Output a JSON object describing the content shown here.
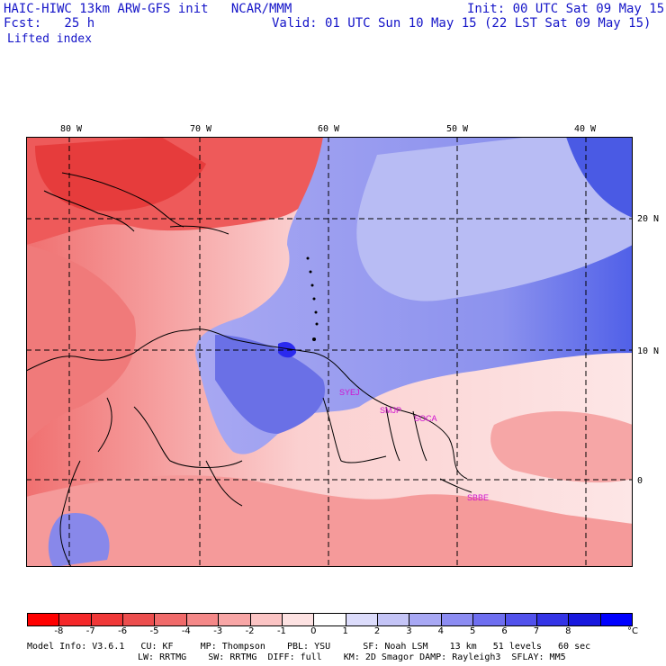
{
  "header": {
    "title": "HAIC-HIWC 13km ARW-GFS init   NCAR/MMM",
    "init": "Init: 00 UTC Sat 09 May 15",
    "fcst": "Fcst:   25 h",
    "valid": "Valid: 01 UTC Sun 10 May 15 (22 LST Sat 09 May 15)",
    "field": "Lifted index"
  },
  "map": {
    "lon_labels": [
      "80 W",
      "70 W",
      "60 W",
      "50 W",
      "40 W"
    ],
    "lat_labels": [
      "20 N",
      "10 N",
      "0"
    ],
    "stations": [
      "SYEJ",
      "SMJP",
      "SOCA",
      "SBBE"
    ],
    "colors": {
      "negative": "#e03030",
      "positive": "#3048e0",
      "neutral": "#ffffff",
      "contour": "#222222",
      "station": "#d010d0"
    }
  },
  "colorbar": {
    "labels": [
      "-8",
      "-7",
      "-6",
      "-5",
      "-4",
      "-3",
      "-2",
      "-1",
      "0",
      "1",
      "2",
      "3",
      "4",
      "5",
      "6",
      "7",
      "8"
    ],
    "unit": "°C",
    "colors": [
      "#ff0000",
      "#f5282a",
      "#f03838",
      "#ec4e4e",
      "#f06a6a",
      "#f48888",
      "#f8a6a6",
      "#fbc4c4",
      "#fde2e2",
      "#ffffff",
      "#dcdcfb",
      "#c4c4f6",
      "#a8a8f4",
      "#8c8cf2",
      "#6e6ef0",
      "#5252ec",
      "#3434e6",
      "#1818de",
      "#0000ff"
    ]
  },
  "footer": {
    "line1": "Model Info: V3.6.1   CU: KF     MP: Thompson    PBL: YSU      SF: Noah LSM    13 km   51 levels   60 sec",
    "line2": "LW: RRTMG    SW: RRTMG  DIFF: full    KM: 2D Smagor DAMP: Rayleigh3  SFLAY: MM5"
  }
}
